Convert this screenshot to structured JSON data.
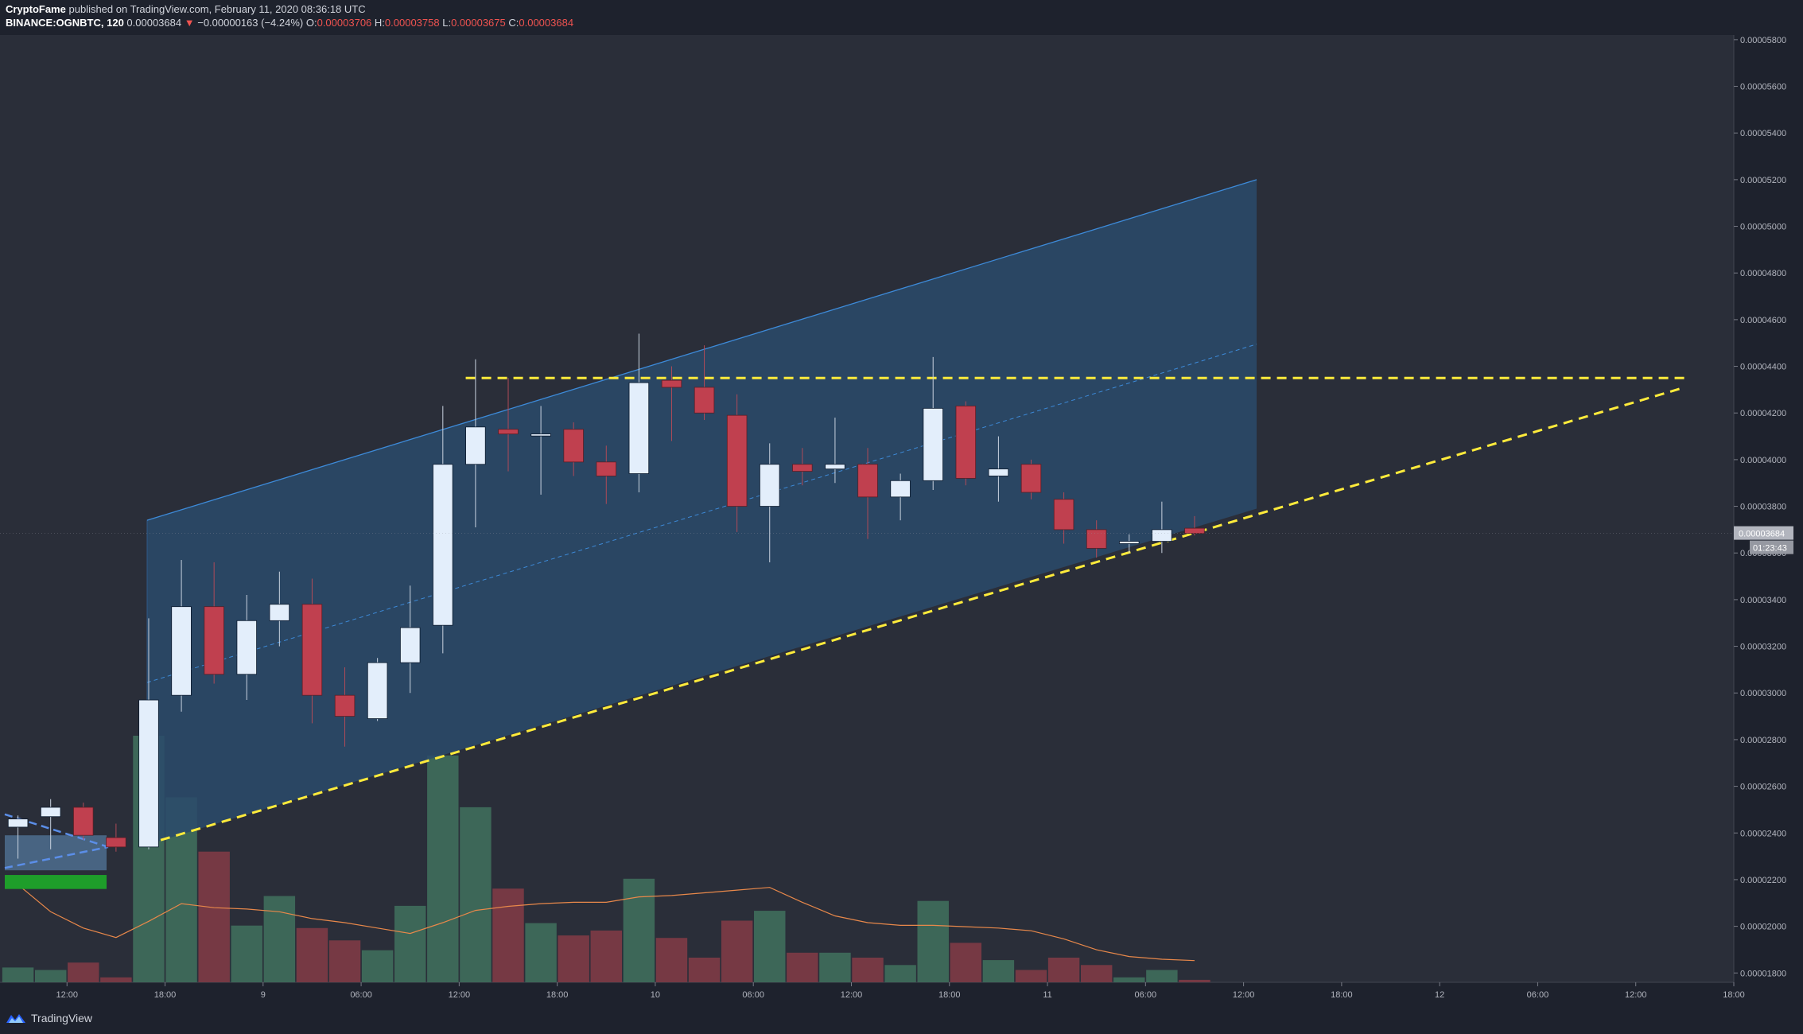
{
  "header": {
    "author": "CryptoFame",
    "published_text": "published on TradingView.com, February 11, 2020 08:36:18 UTC",
    "symbol": "BINANCE:OGNBTC, 120",
    "last": "0.00003684",
    "change_arrow": "▼",
    "change": "−0.00000163 (−4.24%)",
    "open_label": "O:",
    "open": "0.00003706",
    "high_label": "H:",
    "high": "0.00003758",
    "low_label": "L:",
    "low": "0.00003675",
    "close_label": "C:",
    "close": "0.00003684"
  },
  "footer": {
    "brand": "TradingView",
    "brand_icon": "tradingview-logo-icon"
  },
  "chart_data": {
    "type": "candlestick",
    "title": "",
    "interval_minutes": 120,
    "x_start": "2020-02-08 08:00",
    "y_ticks": [
      "0.00005800",
      "0.00005600",
      "0.00005400",
      "0.00005200",
      "0.00005000",
      "0.00004800",
      "0.00004600",
      "0.00004400",
      "0.00004200",
      "0.00004000",
      "0.00003800",
      "0.00003600",
      "0.00003400",
      "0.00003200",
      "0.00003000",
      "0.00002800",
      "0.00002600",
      "0.00002400",
      "0.00002200",
      "0.00002000",
      "0.00001800"
    ],
    "ylim": [
      1.76e-05,
      5.82e-05
    ],
    "x_ticks": [
      {
        "label": "12:00",
        "t": "2020-02-08 12:00"
      },
      {
        "label": "18:00",
        "t": "2020-02-08 18:00"
      },
      {
        "label": "9",
        "t": "2020-02-09 00:00"
      },
      {
        "label": "06:00",
        "t": "2020-02-09 06:00"
      },
      {
        "label": "12:00",
        "t": "2020-02-09 12:00"
      },
      {
        "label": "18:00",
        "t": "2020-02-09 18:00"
      },
      {
        "label": "10",
        "t": "2020-02-10 00:00"
      },
      {
        "label": "06:00",
        "t": "2020-02-10 06:00"
      },
      {
        "label": "12:00",
        "t": "2020-02-10 12:00"
      },
      {
        "label": "18:00",
        "t": "2020-02-10 18:00"
      },
      {
        "label": "11",
        "t": "2020-02-11 00:00"
      },
      {
        "label": "06:00",
        "t": "2020-02-11 06:00"
      },
      {
        "label": "12:00",
        "t": "2020-02-11 12:00"
      },
      {
        "label": "18:00",
        "t": "2020-02-11 18:00"
      },
      {
        "label": "12",
        "t": "2020-02-12 00:00"
      },
      {
        "label": "06:00",
        "t": "2020-02-12 06:00"
      },
      {
        "label": "12:00",
        "t": "2020-02-12 12:00"
      },
      {
        "label": "18:00",
        "t": "2020-02-12 18:00"
      }
    ],
    "xlim": [
      "2020-02-08 07:54",
      "2020-02-12 18:00"
    ],
    "candles": [
      {
        "t": "2020-02-08 08:00",
        "o": 2.425e-05,
        "h": 2.475e-05,
        "l": 2.29e-05,
        "c": 2.46e-05
      },
      {
        "t": "2020-02-08 10:00",
        "o": 2.47e-05,
        "h": 2.545e-05,
        "l": 2.33e-05,
        "c": 2.51e-05
      },
      {
        "t": "2020-02-08 12:00",
        "o": 2.51e-05,
        "h": 2.53e-05,
        "l": 2.37e-05,
        "c": 2.39e-05
      },
      {
        "t": "2020-02-08 14:00",
        "o": 2.38e-05,
        "h": 2.44e-05,
        "l": 2.32e-05,
        "c": 2.34e-05
      },
      {
        "t": "2020-02-08 16:00",
        "o": 2.34e-05,
        "h": 3.32e-05,
        "l": 2.33e-05,
        "c": 2.97e-05
      },
      {
        "t": "2020-02-08 18:00",
        "o": 2.99e-05,
        "h": 3.57e-05,
        "l": 2.92e-05,
        "c": 3.37e-05
      },
      {
        "t": "2020-02-08 20:00",
        "o": 3.37e-05,
        "h": 3.56e-05,
        "l": 3.04e-05,
        "c": 3.08e-05
      },
      {
        "t": "2020-02-08 22:00",
        "o": 3.08e-05,
        "h": 3.42e-05,
        "l": 2.97e-05,
        "c": 3.31e-05
      },
      {
        "t": "2020-02-09 00:00",
        "o": 3.31e-05,
        "h": 3.52e-05,
        "l": 3.2e-05,
        "c": 3.38e-05
      },
      {
        "t": "2020-02-09 02:00",
        "o": 3.38e-05,
        "h": 3.49e-05,
        "l": 2.87e-05,
        "c": 2.99e-05
      },
      {
        "t": "2020-02-09 04:00",
        "o": 2.99e-05,
        "h": 3.11e-05,
        "l": 2.77e-05,
        "c": 2.9e-05
      },
      {
        "t": "2020-02-09 06:00",
        "o": 2.89e-05,
        "h": 3.15e-05,
        "l": 2.88e-05,
        "c": 3.13e-05
      },
      {
        "t": "2020-02-09 08:00",
        "o": 3.13e-05,
        "h": 3.46e-05,
        "l": 3e-05,
        "c": 3.28e-05
      },
      {
        "t": "2020-02-09 10:00",
        "o": 3.29e-05,
        "h": 4.23e-05,
        "l": 3.17e-05,
        "c": 3.98e-05
      },
      {
        "t": "2020-02-09 12:00",
        "o": 3.98e-05,
        "h": 4.43e-05,
        "l": 3.71e-05,
        "c": 4.14e-05
      },
      {
        "t": "2020-02-09 14:00",
        "o": 4.13e-05,
        "h": 4.35e-05,
        "l": 3.95e-05,
        "c": 4.11e-05
      },
      {
        "t": "2020-02-09 16:00",
        "o": 4.11e-05,
        "h": 4.23e-05,
        "l": 3.85e-05,
        "c": 4.11e-05
      },
      {
        "t": "2020-02-09 18:00",
        "o": 4.13e-05,
        "h": 4.16e-05,
        "l": 3.93e-05,
        "c": 3.99e-05
      },
      {
        "t": "2020-02-09 20:00",
        "o": 3.99e-05,
        "h": 4.06e-05,
        "l": 3.81e-05,
        "c": 3.93e-05
      },
      {
        "t": "2020-02-09 22:00",
        "o": 3.94e-05,
        "h": 4.54e-05,
        "l": 3.86e-05,
        "c": 4.33e-05
      },
      {
        "t": "2020-02-10 00:00",
        "o": 4.34e-05,
        "h": 4.4e-05,
        "l": 4.08e-05,
        "c": 4.31e-05
      },
      {
        "t": "2020-02-10 02:00",
        "o": 4.31e-05,
        "h": 4.49e-05,
        "l": 4.17e-05,
        "c": 4.2e-05
      },
      {
        "t": "2020-02-10 04:00",
        "o": 4.19e-05,
        "h": 4.28e-05,
        "l": 3.69e-05,
        "c": 3.8e-05
      },
      {
        "t": "2020-02-10 06:00",
        "o": 3.8e-05,
        "h": 4.07e-05,
        "l": 3.56e-05,
        "c": 3.98e-05
      },
      {
        "t": "2020-02-10 08:00",
        "o": 3.98e-05,
        "h": 4.05e-05,
        "l": 3.89e-05,
        "c": 3.95e-05
      },
      {
        "t": "2020-02-10 10:00",
        "o": 3.96e-05,
        "h": 4.18e-05,
        "l": 3.9e-05,
        "c": 3.98e-05
      },
      {
        "t": "2020-02-10 12:00",
        "o": 3.98e-05,
        "h": 4.05e-05,
        "l": 3.66e-05,
        "c": 3.84e-05
      },
      {
        "t": "2020-02-10 14:00",
        "o": 3.84e-05,
        "h": 3.94e-05,
        "l": 3.74e-05,
        "c": 3.91e-05
      },
      {
        "t": "2020-02-10 16:00",
        "o": 3.91e-05,
        "h": 4.44e-05,
        "l": 3.87e-05,
        "c": 4.22e-05
      },
      {
        "t": "2020-02-10 18:00",
        "o": 4.23e-05,
        "h": 4.25e-05,
        "l": 3.89e-05,
        "c": 3.92e-05
      },
      {
        "t": "2020-02-10 20:00",
        "o": 3.93e-05,
        "h": 4.1e-05,
        "l": 3.82e-05,
        "c": 3.96e-05
      },
      {
        "t": "2020-02-10 22:00",
        "o": 3.98e-05,
        "h": 4e-05,
        "l": 3.83e-05,
        "c": 3.86e-05
      },
      {
        "t": "2020-02-11 00:00",
        "o": 3.83e-05,
        "h": 3.86e-05,
        "l": 3.64e-05,
        "c": 3.7e-05
      },
      {
        "t": "2020-02-11 02:00",
        "o": 3.7e-05,
        "h": 3.74e-05,
        "l": 3.58e-05,
        "c": 3.62e-05
      },
      {
        "t": "2020-02-11 04:00",
        "o": 3.64e-05,
        "h": 3.68e-05,
        "l": 3.6e-05,
        "c": 3.65e-05
      },
      {
        "t": "2020-02-11 06:00",
        "o": 3.65e-05,
        "h": 3.82e-05,
        "l": 3.6e-05,
        "c": 3.7e-05
      },
      {
        "t": "2020-02-11 08:00",
        "o": 3.706e-05,
        "h": 3.758e-05,
        "l": 3.675e-05,
        "c": 3.684e-05
      }
    ],
    "volume_ma": [
      0.72,
      0.52,
      0.4,
      0.33,
      0.45,
      0.58,
      0.55,
      0.54,
      0.52,
      0.47,
      0.44,
      0.4,
      0.36,
      0.44,
      0.53,
      0.56,
      0.58,
      0.59,
      0.59,
      0.63,
      0.64,
      0.66,
      0.68,
      0.7,
      0.59,
      0.49,
      0.44,
      0.42,
      0.42,
      0.41,
      0.4,
      0.38,
      0.32,
      0.24,
      0.19,
      0.17,
      0.16
    ],
    "last_price_label": "0.00003684",
    "countdown_label": "01:23:43",
    "resistance_level": 4.35e-05,
    "drawing_colors": {
      "channel_fill": "#2a4a6b",
      "channel_line": "#3d8ad8",
      "trendline": "#ffeb3b",
      "up_candle": "#e3eefb",
      "down_candle": "#c0404f",
      "volume_up": "#3e6a5a",
      "volume_down": "#7a3a44",
      "volume_ma": "#e8884a",
      "price_tag": "#b2b5be"
    }
  }
}
